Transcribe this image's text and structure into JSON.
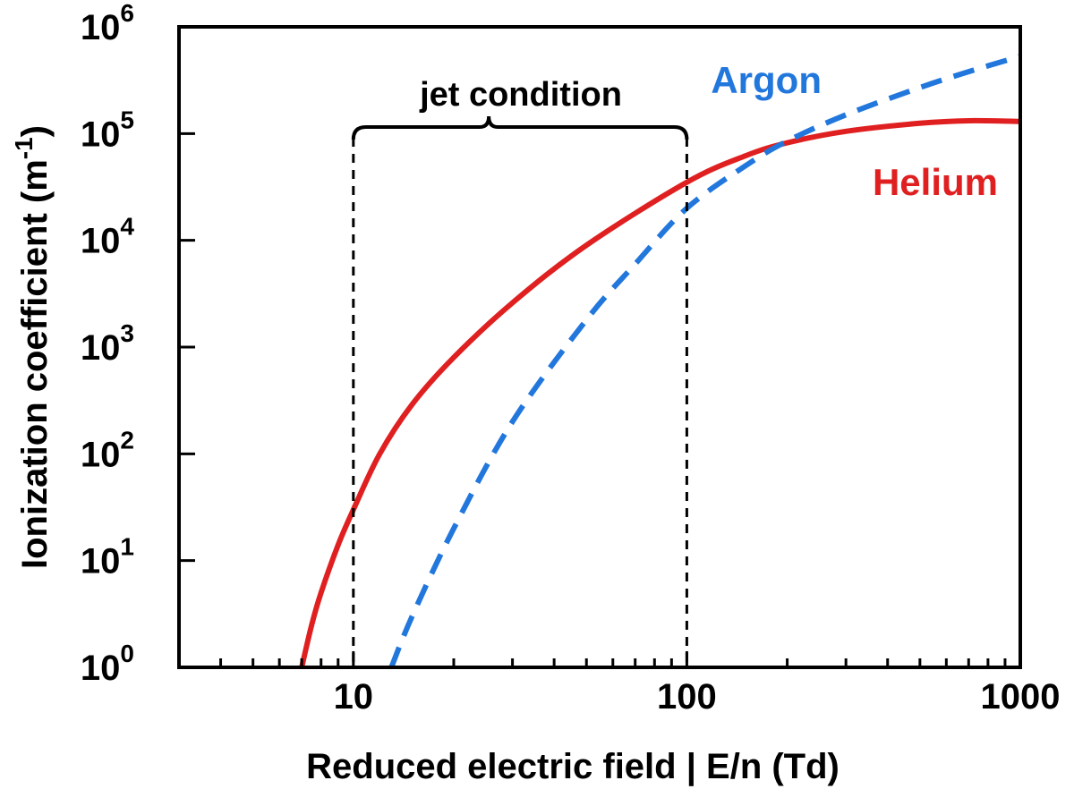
{
  "chart_data": {
    "type": "line",
    "xlabel": "Reduced electric field | E/n (Td)",
    "ylabel": {
      "prefix": "Ionization coefficient (m",
      "exponent": "-1",
      "suffix": ")"
    },
    "x_scale": "log",
    "y_scale": "log",
    "xlim": [
      3,
      1000
    ],
    "ylim": [
      1,
      1000000
    ],
    "x_ticks": [
      {
        "value": 10,
        "label": "10"
      },
      {
        "value": 100,
        "label": "100"
      },
      {
        "value": 1000,
        "label": "1000"
      }
    ],
    "y_ticks": [
      {
        "value": 1,
        "base": "10",
        "exp": "0"
      },
      {
        "value": 10,
        "base": "10",
        "exp": "1"
      },
      {
        "value": 100,
        "base": "10",
        "exp": "2"
      },
      {
        "value": 1000,
        "base": "10",
        "exp": "3"
      },
      {
        "value": 10000,
        "base": "10",
        "exp": "4"
      },
      {
        "value": 100000,
        "base": "10",
        "exp": "5"
      },
      {
        "value": 1000000,
        "base": "10",
        "exp": "6"
      }
    ],
    "grid": false,
    "series": [
      {
        "name": "Helium",
        "color": "#e02020",
        "dash": "solid",
        "x": [
          7,
          7.5,
          8,
          9,
          10,
          12,
          15,
          20,
          30,
          50,
          100,
          150,
          200,
          300,
          500,
          700,
          1000
        ],
        "y": [
          1,
          2.5,
          5,
          14,
          30,
          100,
          290,
          800,
          2600,
          9000,
          35000,
          62000,
          82000,
          105000,
          125000,
          132000,
          130000
        ]
      },
      {
        "name": "Argon",
        "color": "#2277dd",
        "dash": "dashed",
        "x": [
          13,
          15,
          20,
          30,
          50,
          70,
          100,
          150,
          200,
          300,
          500,
          700,
          1000
        ],
        "y": [
          1,
          3,
          20,
          200,
          1800,
          6000,
          20000,
          50000,
          85000,
          150000,
          270000,
          380000,
          530000
        ]
      }
    ],
    "annotations": {
      "jet_condition": {
        "label": "jet condition",
        "x_range": [
          10,
          100
        ]
      }
    }
  }
}
